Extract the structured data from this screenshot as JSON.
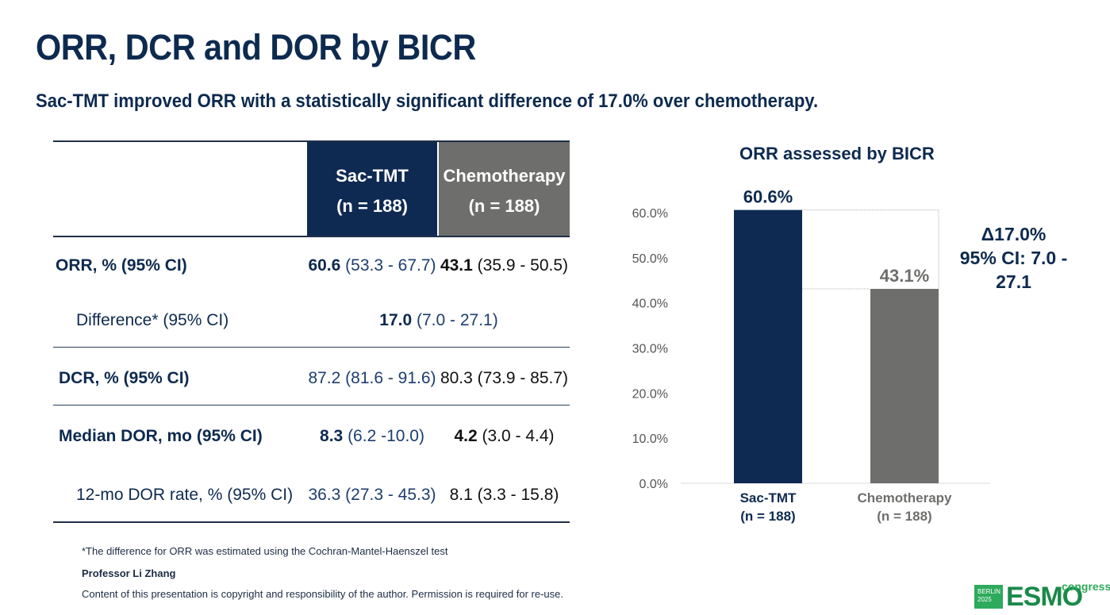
{
  "slide": {
    "title": "ORR, DCR and DOR by BICR",
    "subtitle": "Sac-TMT improved ORR with a statistically significant difference of 17.0% over chemotherapy."
  },
  "table": {
    "headers": {
      "sac_line1": "Sac-TMT",
      "sac_line2": "(n = 188)",
      "chemo_line1": "Chemotherapy",
      "chemo_line2": "(n = 188)"
    },
    "rows": {
      "orr": {
        "label": "ORR, % (95% CI)",
        "sac_main": "60.6",
        "sac_ci": " (53.3 - 67.7)",
        "chemo_main": "43.1",
        "chemo_ci": " (35.9 - 50.5)"
      },
      "diff": {
        "label": "Difference* (95% CI)",
        "main": "17.0",
        "ci": " (7.0 - 27.1)"
      },
      "dcr": {
        "label": "DCR, % (95% CI)",
        "sac": "87.2 (81.6 - 91.6)",
        "chemo": "80.3 (73.9 - 85.7)"
      },
      "dor": {
        "label": "Median DOR, mo (95% CI)",
        "sac_main": "8.3",
        "sac_ci": " (6.2 -10.0)",
        "chemo_main": "4.2",
        "chemo_ci": " (3.0 - 4.4)"
      },
      "dor12": {
        "label": "12-mo DOR rate, % (95% CI)",
        "sac": "36.3 (27.3 - 45.3)",
        "chemo": "8.1 (3.3 - 15.8)"
      }
    }
  },
  "footer": {
    "note": "*The difference for ORR was estimated using the Cochran-Mantel-Haenszel test",
    "presenter": "Professor Li Zhang",
    "copyright": "Content of this presentation is copyright and responsibility of the author. Permission is required for re-use."
  },
  "chart_data": {
    "type": "bar",
    "title": "ORR assessed by BICR",
    "categories": [
      "Sac-TMT",
      "Chemotherapy"
    ],
    "category_sublabels": [
      "(n = 188)",
      "(n = 188)"
    ],
    "values": [
      60.6,
      43.1
    ],
    "data_labels": [
      "60.6%",
      "43.1%"
    ],
    "ylim": [
      0,
      60
    ],
    "yticks": [
      "0.0%",
      "10.0%",
      "20.0%",
      "30.0%",
      "40.0%",
      "50.0%",
      "60.0%"
    ],
    "colors": [
      "#0f2a52",
      "#6e6e6c"
    ],
    "annotation": {
      "line1": "Δ17.0%",
      "line2": "95% CI: 7.0 - 27.1"
    }
  },
  "logo": {
    "city": "BERLIN",
    "year": "2025",
    "brand": "ESMO",
    "suffix": "congress"
  }
}
